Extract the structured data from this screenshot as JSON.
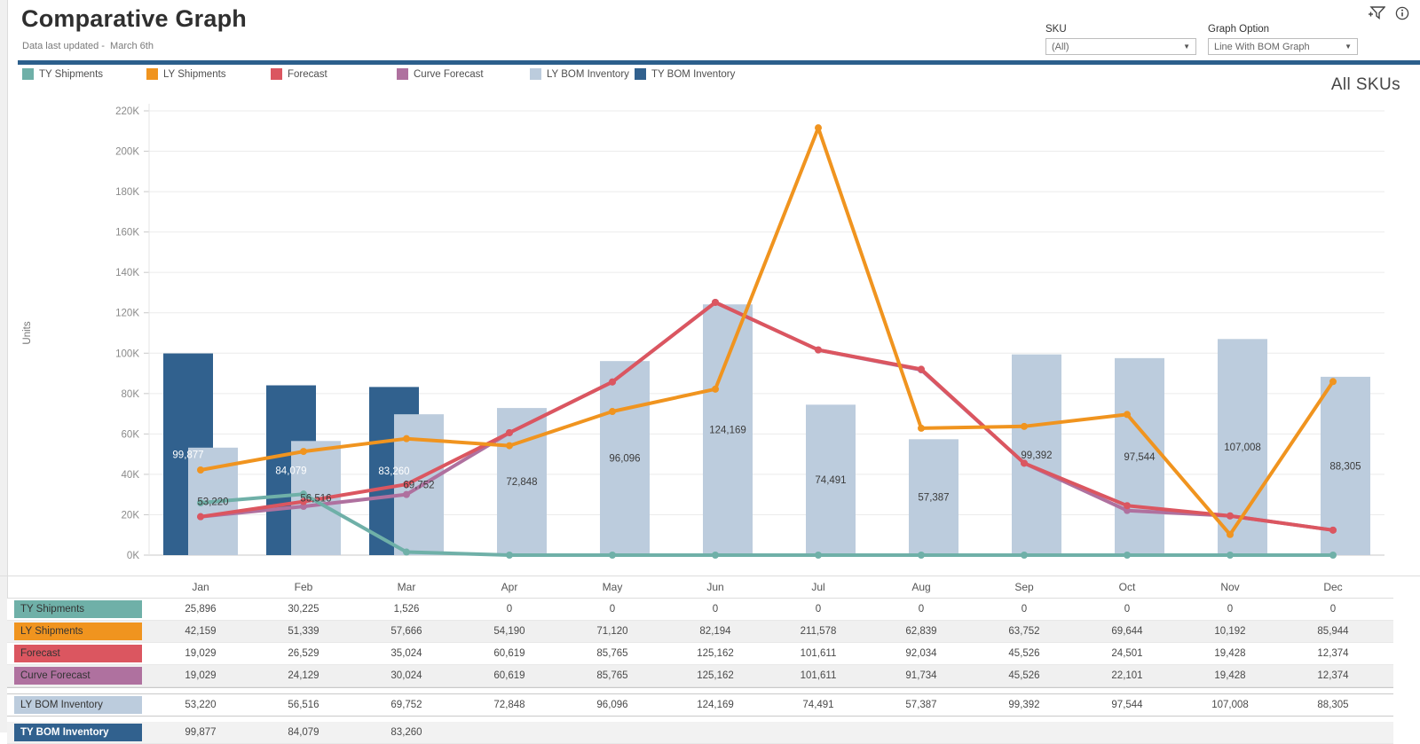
{
  "header": {
    "title": "Comparative Graph",
    "subtitle": "Data last updated -  March 6th"
  },
  "controls": {
    "sku": {
      "label": "SKU",
      "value": "(All)"
    },
    "graph": {
      "label": "Graph Option",
      "value": "Line With BOM Graph"
    }
  },
  "icons": {
    "filter": "add-filter-icon",
    "info": "info-icon"
  },
  "annotation": "All SKUs",
  "colors": {
    "divider": "#2c5f8c",
    "grid": "#ebebeb",
    "axis": "#c9c9c9"
  },
  "chart_data": {
    "type": "combo",
    "x": [
      "Jan",
      "Feb",
      "Mar",
      "Apr",
      "May",
      "Jun",
      "Jul",
      "Aug",
      "Sep",
      "Oct",
      "Nov",
      "Dec"
    ],
    "ylabel": "Units",
    "ylim": [
      0,
      220000
    ],
    "ytick_step": 20000,
    "ytick_labels": [
      "0K",
      "20K",
      "40K",
      "60K",
      "80K",
      "100K",
      "120K",
      "140K",
      "160K",
      "180K",
      "200K",
      "220K"
    ],
    "grid": true,
    "legend_position": "top",
    "series": [
      {
        "name": "TY Shipments",
        "type": "line",
        "color": "#6fb0a8",
        "row_text": "#333333",
        "values": [
          25896,
          30225,
          1526,
          0,
          0,
          0,
          0,
          0,
          0,
          0,
          0,
          0
        ]
      },
      {
        "name": "LY Shipments",
        "type": "line",
        "color": "#f0941f",
        "row_text": "#333333",
        "values": [
          42159,
          51339,
          57666,
          54190,
          71120,
          82194,
          211578,
          62839,
          63752,
          69644,
          10192,
          85944
        ]
      },
      {
        "name": "Forecast",
        "type": "line",
        "color": "#db5660",
        "row_text": "#333333",
        "values": [
          19029,
          26529,
          35024,
          60619,
          85765,
          125162,
          101611,
          92034,
          45526,
          24501,
          19428,
          12374
        ]
      },
      {
        "name": "Curve Forecast",
        "type": "line",
        "color": "#af719f",
        "row_text": "#333333",
        "values": [
          19029,
          24129,
          30024,
          60619,
          85765,
          125162,
          101611,
          91734,
          45526,
          22101,
          19428,
          12374
        ]
      },
      {
        "name": "LY BOM Inventory",
        "type": "bar",
        "color": "#bcccdd",
        "row_text": "#333333",
        "label_color": "#3c3c3c",
        "values": [
          53220,
          56516,
          69752,
          72848,
          96096,
          124169,
          74491,
          57387,
          99392,
          97544,
          107008,
          88305
        ]
      },
      {
        "name": "TY BOM Inventory",
        "type": "bar",
        "color": "#31618e",
        "row_text": "#ffffff",
        "label_color": "#ffffff",
        "values": [
          99877,
          84079,
          83260,
          null,
          null,
          null,
          null,
          null,
          null,
          null,
          null,
          null
        ]
      }
    ]
  }
}
